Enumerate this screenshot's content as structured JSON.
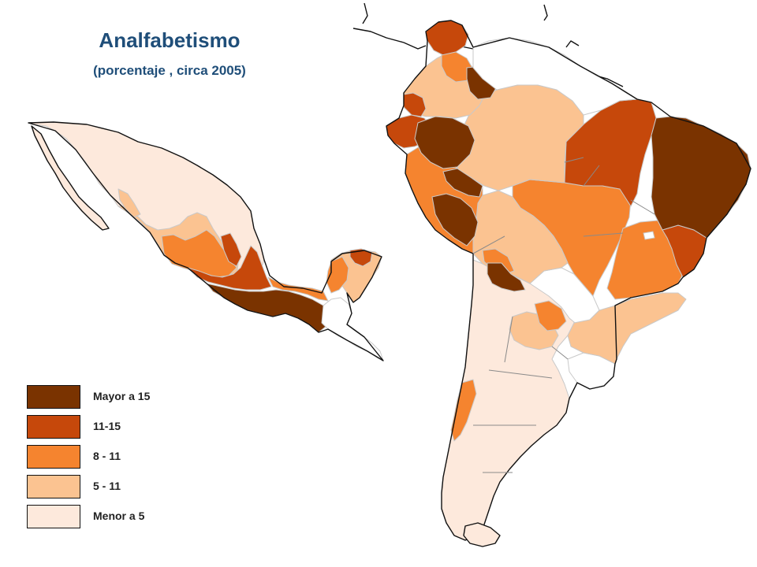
{
  "title": "Analfabetismo",
  "subtitle": "(porcentaje , circa 2005)",
  "legend": {
    "items": [
      {
        "label": "Mayor a 15",
        "color": "#7a3300"
      },
      {
        "label": "11-15",
        "color": "#c6480b"
      },
      {
        "label": "8 - 11",
        "color": "#f5842f"
      },
      {
        "label": "5 - 11",
        "color": "#fbc391"
      },
      {
        "label": "Menor a 5",
        "color": "#fde9dc"
      }
    ]
  },
  "no_data_color": "#ffffff"
}
